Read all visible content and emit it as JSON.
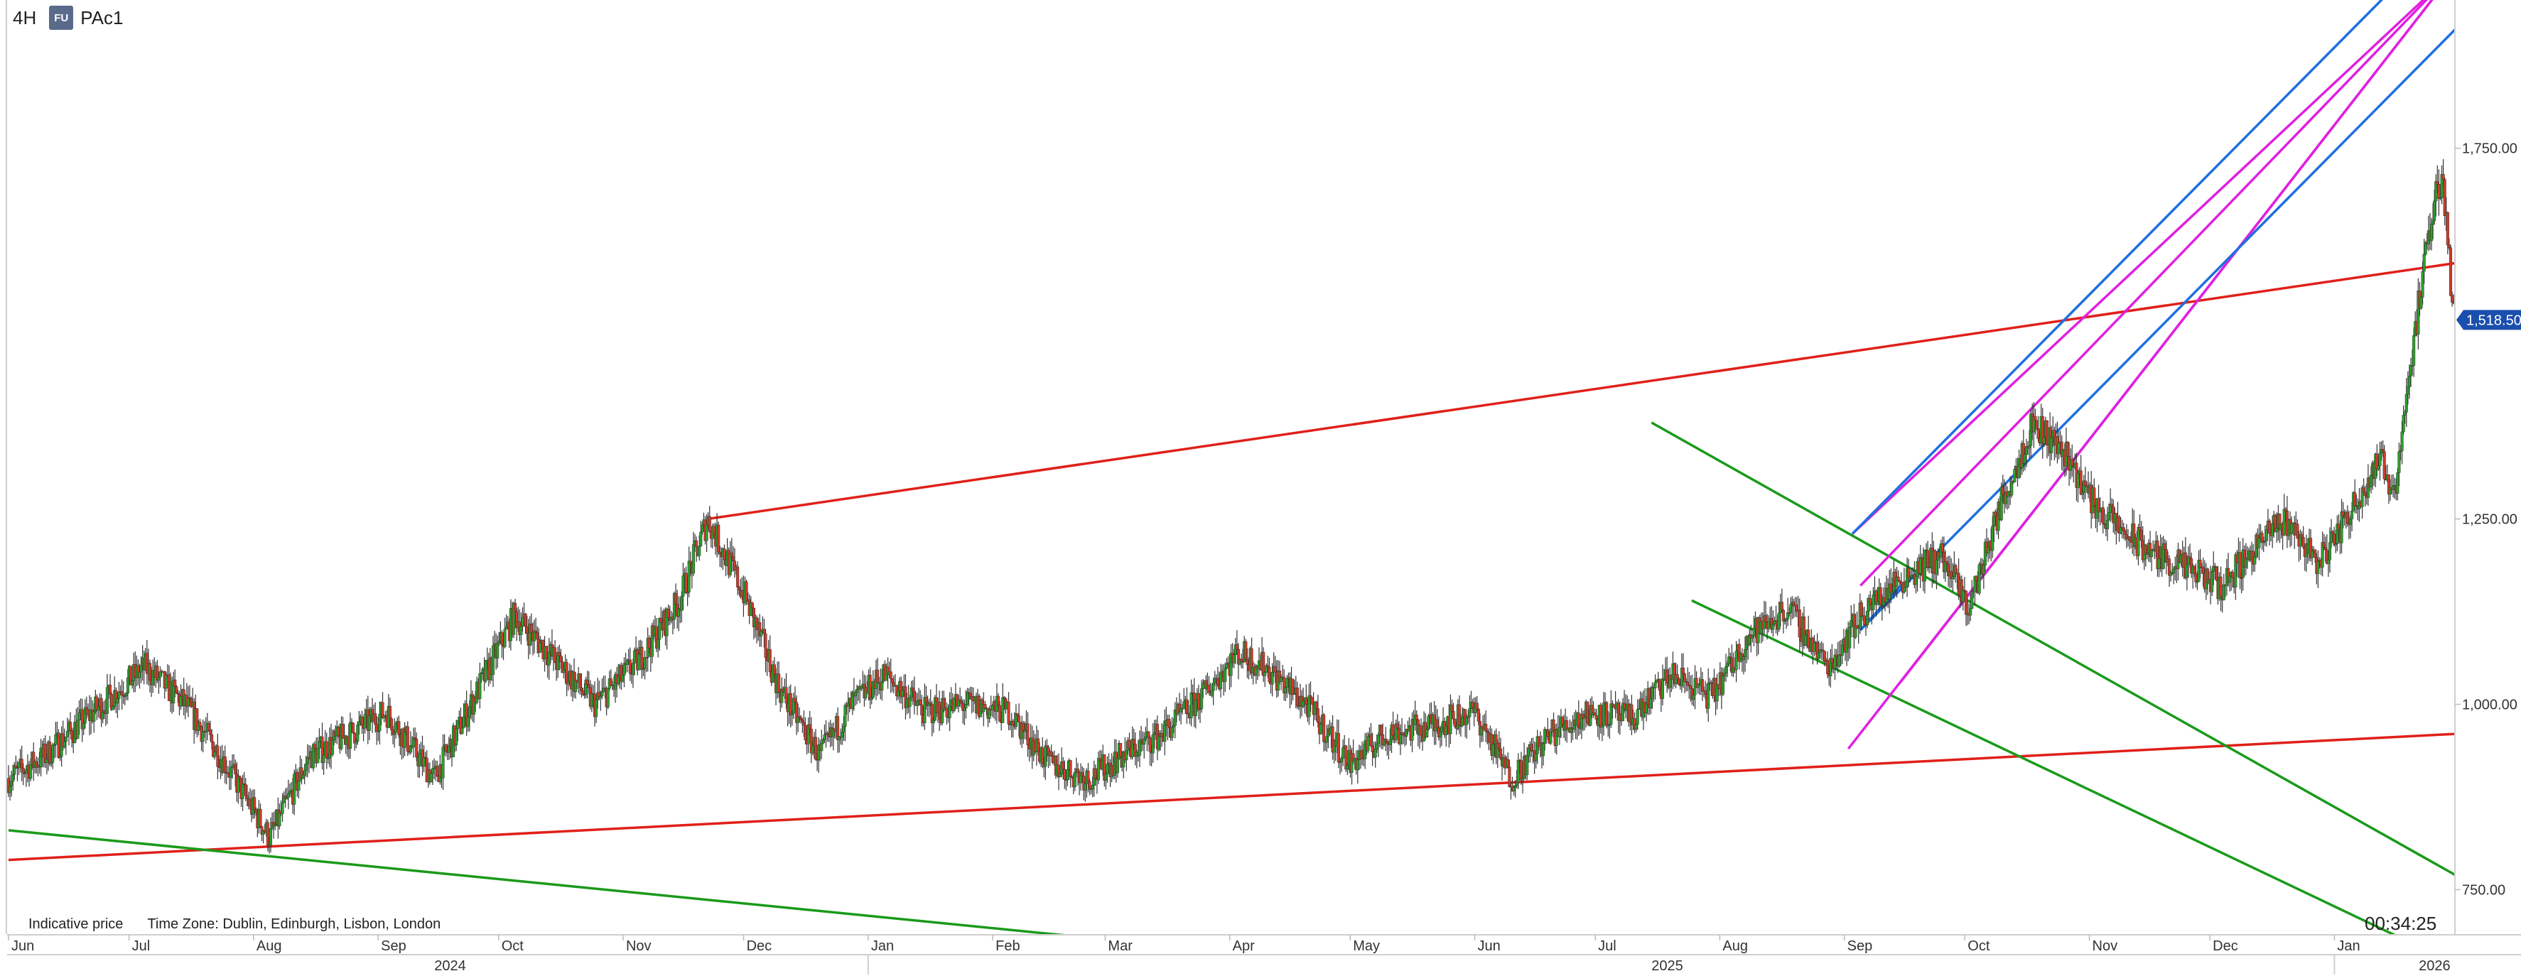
{
  "header": {
    "timeframe": "4H",
    "symbol_badge": "FU",
    "symbol": "PAc1"
  },
  "footer": {
    "indicative": "Indicative price",
    "timezone": "Time Zone: Dublin, Edinburgh, Lisbon, London",
    "countdown": "00:34:25"
  },
  "chart_data": {
    "type": "candlestick",
    "interval": "4H",
    "title": "",
    "xlabel": "",
    "ylabel": "",
    "ylim": [
      690,
      1950
    ],
    "xlim": [
      "2024-06-01",
      "2026-01-31"
    ],
    "grid": false,
    "last_price": {
      "label": "1,518.50",
      "value": 1518.5,
      "color": "#1b4fae"
    },
    "y_ticks": [
      {
        "label": "750.00",
        "value": 750
      },
      {
        "label": "1,000.00",
        "value": 1000
      },
      {
        "label": "1,250.00",
        "value": 1250
      },
      {
        "label": "1,750.00",
        "value": 1750
      }
    ],
    "x_ticks": [
      {
        "label": "Jun",
        "date": "2024-06-01"
      },
      {
        "label": "Jul",
        "date": "2024-07-01"
      },
      {
        "label": "Aug",
        "date": "2024-08-01"
      },
      {
        "label": "Sep",
        "date": "2024-09-01"
      },
      {
        "label": "Oct",
        "date": "2024-10-01"
      },
      {
        "label": "Nov",
        "date": "2024-11-01"
      },
      {
        "label": "Dec",
        "date": "2024-12-01"
      },
      {
        "label": "Jan",
        "date": "2025-01-01"
      },
      {
        "label": "Feb",
        "date": "2025-02-01"
      },
      {
        "label": "Mar",
        "date": "2025-03-01"
      },
      {
        "label": "Apr",
        "date": "2025-04-01"
      },
      {
        "label": "May",
        "date": "2025-05-01"
      },
      {
        "label": "Jun",
        "date": "2025-06-01"
      },
      {
        "label": "Jul",
        "date": "2025-07-01"
      },
      {
        "label": "Aug",
        "date": "2025-08-01"
      },
      {
        "label": "Sep",
        "date": "2025-09-01"
      },
      {
        "label": "Oct",
        "date": "2025-10-01"
      },
      {
        "label": "Nov",
        "date": "2025-11-01"
      },
      {
        "label": "Dec",
        "date": "2025-12-01"
      },
      {
        "label": "Jan",
        "date": "2026-01-01"
      }
    ],
    "year_labels": [
      {
        "label": "2024",
        "date": "2024-09-15"
      },
      {
        "label": "2025",
        "date": "2025-07-15"
      },
      {
        "label": "2026",
        "date": "2026-01-22"
      }
    ],
    "price_path": [
      [
        "2024-06-01",
        900
      ],
      [
        "2024-06-10",
        930
      ],
      [
        "2024-06-20",
        980
      ],
      [
        "2024-07-05",
        1050
      ],
      [
        "2024-07-15",
        1000
      ],
      [
        "2024-07-25",
        920
      ],
      [
        "2024-08-05",
        820
      ],
      [
        "2024-08-15",
        930
      ],
      [
        "2024-08-25",
        960
      ],
      [
        "2024-09-03",
        990
      ],
      [
        "2024-09-15",
        900
      ],
      [
        "2024-09-25",
        1010
      ],
      [
        "2024-10-05",
        1120
      ],
      [
        "2024-10-15",
        1060
      ],
      [
        "2024-10-25",
        1000
      ],
      [
        "2024-11-05",
        1060
      ],
      [
        "2024-11-15",
        1140
      ],
      [
        "2024-11-22",
        1250
      ],
      [
        "2024-12-01",
        1150
      ],
      [
        "2024-12-10",
        1020
      ],
      [
        "2024-12-20",
        930
      ],
      [
        "2024-12-28",
        1000
      ],
      [
        "2025-01-05",
        1040
      ],
      [
        "2025-01-15",
        990
      ],
      [
        "2025-01-25",
        1000
      ],
      [
        "2025-02-05",
        990
      ],
      [
        "2025-02-15",
        920
      ],
      [
        "2025-02-25",
        900
      ],
      [
        "2025-03-05",
        930
      ],
      [
        "2025-03-15",
        960
      ],
      [
        "2025-03-25",
        1010
      ],
      [
        "2025-04-03",
        1070
      ],
      [
        "2025-04-10",
        1050
      ],
      [
        "2025-04-20",
        1000
      ],
      [
        "2025-05-01",
        920
      ],
      [
        "2025-05-10",
        960
      ],
      [
        "2025-05-20",
        970
      ],
      [
        "2025-06-01",
        990
      ],
      [
        "2025-06-10",
        900
      ],
      [
        "2025-06-20",
        960
      ],
      [
        "2025-06-30",
        990
      ],
      [
        "2025-07-10",
        980
      ],
      [
        "2025-07-20",
        1040
      ],
      [
        "2025-07-30",
        1010
      ],
      [
        "2025-08-08",
        1090
      ],
      [
        "2025-08-18",
        1130
      ],
      [
        "2025-08-28",
        1050
      ],
      [
        "2025-09-05",
        1120
      ],
      [
        "2025-09-15",
        1170
      ],
      [
        "2025-09-25",
        1200
      ],
      [
        "2025-10-02",
        1130
      ],
      [
        "2025-10-10",
        1270
      ],
      [
        "2025-10-18",
        1380
      ],
      [
        "2025-10-26",
        1340
      ],
      [
        "2025-11-02",
        1270
      ],
      [
        "2025-11-10",
        1230
      ],
      [
        "2025-11-18",
        1200
      ],
      [
        "2025-11-26",
        1180
      ],
      [
        "2025-12-04",
        1160
      ],
      [
        "2025-12-12",
        1210
      ],
      [
        "2025-12-20",
        1250
      ],
      [
        "2025-12-28",
        1190
      ],
      [
        "2026-01-05",
        1260
      ],
      [
        "2026-01-12",
        1330
      ],
      [
        "2026-01-16",
        1290
      ],
      [
        "2026-01-19",
        1420
      ],
      [
        "2026-01-22",
        1540
      ],
      [
        "2026-01-26",
        1680
      ],
      [
        "2026-01-28",
        1720
      ],
      [
        "2026-01-30",
        1560
      ],
      [
        "2026-01-31",
        1518.5
      ]
    ],
    "trendlines": [
      {
        "color": "#e0201a",
        "from": [
          "2024-11-22",
          1250
        ],
        "to": [
          "2026-01-31",
          1595
        ]
      },
      {
        "color": "#e0201a",
        "from": [
          "2024-06-01",
          790
        ],
        "to": [
          "2026-01-31",
          960
        ]
      },
      {
        "color": "#1a9a1a",
        "from": [
          "2024-06-01",
          830
        ],
        "to": [
          "2025-05-01",
          650
        ]
      },
      {
        "color": "#1a9a1a",
        "from": [
          "2025-07-15",
          1380
        ],
        "to": [
          "2026-01-31",
          770
        ]
      },
      {
        "color": "#1a9a1a",
        "from": [
          "2025-07-25",
          1140
        ],
        "to": [
          "2026-01-31",
          650
        ]
      },
      {
        "color": "#e020e0",
        "from": [
          "2025-09-02",
          940
        ],
        "to": [
          "2026-01-31",
          1990
        ]
      },
      {
        "color": "#e020e0",
        "from": [
          "2025-09-15",
          1030
        ],
        "to": [
          "2026-01-31",
          1990
        ]
      },
      {
        "color": "#e020e0",
        "from": [
          "2025-09-05",
          1160
        ],
        "to": [
          "2026-01-31",
          1990
        ]
      },
      {
        "color": "#e020e0",
        "from": [
          "2025-09-03",
          1230
        ],
        "to": [
          "2026-01-31",
          1990
        ]
      },
      {
        "color": "#1f6fe0",
        "from": [
          "2025-09-03",
          1230
        ],
        "to": [
          "2026-01-31",
          2050
        ]
      },
      {
        "color": "#1f6fe0",
        "from": [
          "2025-09-05",
          1100
        ],
        "to": [
          "2026-01-31",
          1910
        ]
      },
      {
        "color": "#1f6fe0",
        "from": [
          "2025-09-05",
          1100
        ],
        "to": [
          "2025-09-15",
          1160
        ]
      }
    ]
  }
}
